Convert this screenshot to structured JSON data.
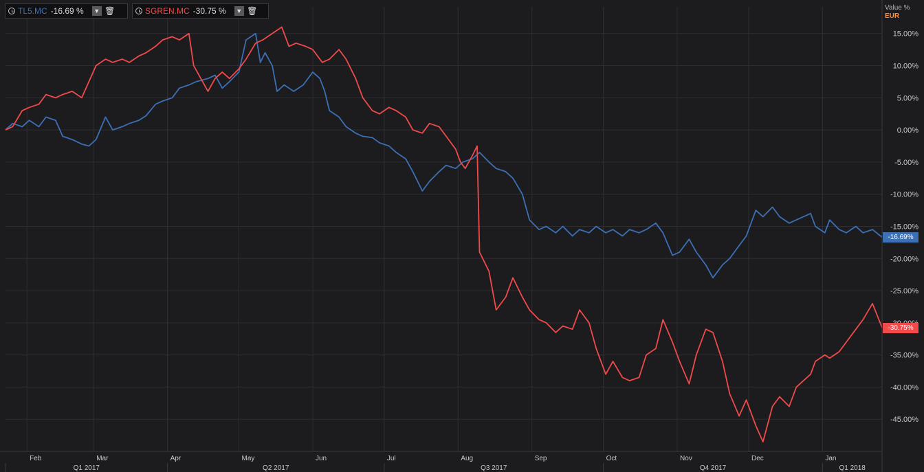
{
  "legend": [
    {
      "symbol": "TL5.MC",
      "change": "-16.69 %",
      "color": "#3d6fb4",
      "dropdown_icon": "chevron-down-icon",
      "delete_icon": "trash-icon"
    },
    {
      "symbol": "SGREN.MC",
      "change": "-30.75 %",
      "color": "#f04a4a",
      "dropdown_icon": "chevron-down-icon",
      "delete_icon": "trash-icon"
    }
  ],
  "axis_header": {
    "line1": "Value %",
    "line2": "EUR"
  },
  "last_value_labels": [
    {
      "text": "-16.69%",
      "value": -16.69,
      "color": "#3d6fb4"
    },
    {
      "text": "-30.75%",
      "value": -30.75,
      "color": "#f04a4a"
    }
  ],
  "chart_data": {
    "type": "line",
    "title": "",
    "xlabel": "",
    "ylabel": "Value %",
    "ylim": [
      -50,
      17
    ],
    "x_range": [
      "2017-01-23",
      "2018-01-26"
    ],
    "y_ticks": [
      15,
      10,
      5,
      0,
      -5,
      -10,
      -15,
      -20,
      -25,
      -30,
      -35,
      -40,
      -45
    ],
    "y_tick_labels": [
      "15.00%",
      "10.00%",
      "5.00%",
      "0.00%",
      "-5.00%",
      "-10.00%",
      "-15.00%",
      "-20.00%",
      "-25.00%",
      "-30.00%",
      "-35.00%",
      "-40.00%",
      "-45.00%"
    ],
    "month_ticks": [
      {
        "date": "2017-02-01",
        "label": "Feb"
      },
      {
        "date": "2017-03-01",
        "label": "Mar"
      },
      {
        "date": "2017-04-01",
        "label": "Apr"
      },
      {
        "date": "2017-05-01",
        "label": "May"
      },
      {
        "date": "2017-06-01",
        "label": "Jun"
      },
      {
        "date": "2017-07-01",
        "label": "Jul"
      },
      {
        "date": "2017-08-01",
        "label": "Aug"
      },
      {
        "date": "2017-09-01",
        "label": "Sep"
      },
      {
        "date": "2017-10-01",
        "label": "Oct"
      },
      {
        "date": "2017-11-01",
        "label": "Nov"
      },
      {
        "date": "2017-12-01",
        "label": "Dec"
      },
      {
        "date": "2018-01-01",
        "label": "Jan"
      }
    ],
    "quarter_labels": [
      {
        "label": "Q1 2017",
        "start": "2017-01-23",
        "end": "2017-04-01"
      },
      {
        "label": "Q2 2017",
        "start": "2017-04-01",
        "end": "2017-07-01"
      },
      {
        "label": "Q3 2017",
        "start": "2017-07-01",
        "end": "2017-10-01"
      },
      {
        "label": "Q4 2017",
        "start": "2017-10-01",
        "end": "2018-01-01"
      },
      {
        "label": "Q1 2018",
        "start": "2018-01-01",
        "end": "2018-01-26"
      }
    ],
    "grid": true,
    "series": [
      {
        "name": "TL5.MC",
        "color": "#3d6fb4",
        "points": [
          [
            "2017-01-23",
            0
          ],
          [
            "2017-01-26",
            1
          ],
          [
            "2017-01-30",
            0.5
          ],
          [
            "2017-02-02",
            1.5
          ],
          [
            "2017-02-06",
            0.5
          ],
          [
            "2017-02-09",
            2
          ],
          [
            "2017-02-13",
            1.5
          ],
          [
            "2017-02-16",
            -1
          ],
          [
            "2017-02-20",
            -1.5
          ],
          [
            "2017-02-24",
            -2.2
          ],
          [
            "2017-02-27",
            -2.5
          ],
          [
            "2017-03-02",
            -1.5
          ],
          [
            "2017-03-06",
            2
          ],
          [
            "2017-03-09",
            0
          ],
          [
            "2017-03-13",
            0.5
          ],
          [
            "2017-03-16",
            1
          ],
          [
            "2017-03-20",
            1.5
          ],
          [
            "2017-03-23",
            2.2
          ],
          [
            "2017-03-27",
            4
          ],
          [
            "2017-03-30",
            4.5
          ],
          [
            "2017-04-03",
            5
          ],
          [
            "2017-04-06",
            6.5
          ],
          [
            "2017-04-10",
            7
          ],
          [
            "2017-04-13",
            7.5
          ],
          [
            "2017-04-18",
            8
          ],
          [
            "2017-04-21",
            8.5
          ],
          [
            "2017-04-24",
            6.5
          ],
          [
            "2017-04-27",
            7.5
          ],
          [
            "2017-05-01",
            9
          ],
          [
            "2017-05-04",
            14
          ],
          [
            "2017-05-08",
            15
          ],
          [
            "2017-05-10",
            10.5
          ],
          [
            "2017-05-12",
            12
          ],
          [
            "2017-05-15",
            10
          ],
          [
            "2017-05-17",
            6
          ],
          [
            "2017-05-20",
            7
          ],
          [
            "2017-05-24",
            6
          ],
          [
            "2017-05-28",
            7
          ],
          [
            "2017-06-01",
            9
          ],
          [
            "2017-06-04",
            8
          ],
          [
            "2017-06-06",
            6
          ],
          [
            "2017-06-08",
            3
          ],
          [
            "2017-06-12",
            2
          ],
          [
            "2017-06-15",
            0.5
          ],
          [
            "2017-06-19",
            -0.5
          ],
          [
            "2017-06-22",
            -1
          ],
          [
            "2017-06-26",
            -1.2
          ],
          [
            "2017-06-29",
            -2
          ],
          [
            "2017-07-03",
            -2.5
          ],
          [
            "2017-07-06",
            -3.5
          ],
          [
            "2017-07-10",
            -4.5
          ],
          [
            "2017-07-13",
            -6.5
          ],
          [
            "2017-07-17",
            -9.5
          ],
          [
            "2017-07-20",
            -8
          ],
          [
            "2017-07-24",
            -6.5
          ],
          [
            "2017-07-27",
            -5.5
          ],
          [
            "2017-07-31",
            -6
          ],
          [
            "2017-08-03",
            -5
          ],
          [
            "2017-08-07",
            -4.5
          ],
          [
            "2017-08-10",
            -3.5
          ],
          [
            "2017-08-14",
            -5
          ],
          [
            "2017-08-17",
            -6
          ],
          [
            "2017-08-21",
            -6.5
          ],
          [
            "2017-08-24",
            -7.5
          ],
          [
            "2017-08-28",
            -10
          ],
          [
            "2017-08-31",
            -14
          ],
          [
            "2017-09-04",
            -15.5
          ],
          [
            "2017-09-07",
            -15
          ],
          [
            "2017-09-11",
            -16
          ],
          [
            "2017-09-14",
            -15
          ],
          [
            "2017-09-18",
            -16.5
          ],
          [
            "2017-09-21",
            -15.5
          ],
          [
            "2017-09-25",
            -16
          ],
          [
            "2017-09-28",
            -15
          ],
          [
            "2017-10-02",
            -16
          ],
          [
            "2017-10-05",
            -15.5
          ],
          [
            "2017-10-09",
            -16.5
          ],
          [
            "2017-10-12",
            -15.5
          ],
          [
            "2017-10-16",
            -16
          ],
          [
            "2017-10-19",
            -15.5
          ],
          [
            "2017-10-23",
            -14.5
          ],
          [
            "2017-10-26",
            -16
          ],
          [
            "2017-10-30",
            -19.5
          ],
          [
            "2017-11-02",
            -19
          ],
          [
            "2017-11-06",
            -17
          ],
          [
            "2017-11-09",
            -19
          ],
          [
            "2017-11-13",
            -21
          ],
          [
            "2017-11-16",
            -23
          ],
          [
            "2017-11-20",
            -21
          ],
          [
            "2017-11-23",
            -20
          ],
          [
            "2017-11-27",
            -18
          ],
          [
            "2017-11-30",
            -16.5
          ],
          [
            "2017-12-04",
            -12.5
          ],
          [
            "2017-12-07",
            -13.5
          ],
          [
            "2017-12-11",
            -12
          ],
          [
            "2017-12-14",
            -13.5
          ],
          [
            "2017-12-18",
            -14.5
          ],
          [
            "2017-12-21",
            -14
          ],
          [
            "2017-12-27",
            -13
          ],
          [
            "2017-12-29",
            -15
          ],
          [
            "2018-01-02",
            -16
          ],
          [
            "2018-01-04",
            -14
          ],
          [
            "2018-01-08",
            -15.5
          ],
          [
            "2018-01-11",
            -16
          ],
          [
            "2018-01-15",
            -15
          ],
          [
            "2018-01-18",
            -16
          ],
          [
            "2018-01-22",
            -15.5
          ],
          [
            "2018-01-26",
            -16.69
          ]
        ]
      },
      {
        "name": "SGREN.MC",
        "color": "#f04a4a",
        "points": [
          [
            "2017-01-23",
            0
          ],
          [
            "2017-01-26",
            0.5
          ],
          [
            "2017-01-30",
            3
          ],
          [
            "2017-02-02",
            3.5
          ],
          [
            "2017-02-06",
            4
          ],
          [
            "2017-02-09",
            5.5
          ],
          [
            "2017-02-13",
            5
          ],
          [
            "2017-02-16",
            5.5
          ],
          [
            "2017-02-20",
            6
          ],
          [
            "2017-02-24",
            5
          ],
          [
            "2017-02-27",
            7.5
          ],
          [
            "2017-03-02",
            10
          ],
          [
            "2017-03-06",
            11
          ],
          [
            "2017-03-09",
            10.5
          ],
          [
            "2017-03-13",
            11
          ],
          [
            "2017-03-16",
            10.5
          ],
          [
            "2017-03-20",
            11.5
          ],
          [
            "2017-03-23",
            12
          ],
          [
            "2017-03-27",
            13
          ],
          [
            "2017-03-30",
            14
          ],
          [
            "2017-04-03",
            14.5
          ],
          [
            "2017-04-06",
            14
          ],
          [
            "2017-04-10",
            15
          ],
          [
            "2017-04-12",
            10
          ],
          [
            "2017-04-18",
            6
          ],
          [
            "2017-04-21",
            8
          ],
          [
            "2017-04-24",
            9
          ],
          [
            "2017-04-27",
            8
          ],
          [
            "2017-05-01",
            9.5
          ],
          [
            "2017-05-04",
            11
          ],
          [
            "2017-05-08",
            13.5
          ],
          [
            "2017-05-11",
            14
          ],
          [
            "2017-05-15",
            15
          ],
          [
            "2017-05-19",
            16
          ],
          [
            "2017-05-22",
            13
          ],
          [
            "2017-05-25",
            13.5
          ],
          [
            "2017-05-29",
            13
          ],
          [
            "2017-06-01",
            12.5
          ],
          [
            "2017-06-05",
            10.5
          ],
          [
            "2017-06-08",
            11
          ],
          [
            "2017-06-12",
            12.5
          ],
          [
            "2017-06-15",
            11
          ],
          [
            "2017-06-19",
            8
          ],
          [
            "2017-06-22",
            5
          ],
          [
            "2017-06-26",
            3
          ],
          [
            "2017-06-29",
            2.5
          ],
          [
            "2017-07-03",
            3.5
          ],
          [
            "2017-07-06",
            3
          ],
          [
            "2017-07-10",
            2
          ],
          [
            "2017-07-13",
            0
          ],
          [
            "2017-07-17",
            -0.5
          ],
          [
            "2017-07-20",
            1
          ],
          [
            "2017-07-24",
            0.5
          ],
          [
            "2017-07-27",
            -1
          ],
          [
            "2017-07-31",
            -3
          ],
          [
            "2017-08-02",
            -5
          ],
          [
            "2017-08-04",
            -6
          ],
          [
            "2017-08-07",
            -4
          ],
          [
            "2017-08-09",
            -2.5
          ],
          [
            "2017-08-10",
            -19
          ],
          [
            "2017-08-14",
            -22
          ],
          [
            "2017-08-17",
            -28
          ],
          [
            "2017-08-21",
            -26
          ],
          [
            "2017-08-24",
            -23
          ],
          [
            "2017-08-28",
            -26
          ],
          [
            "2017-08-31",
            -28
          ],
          [
            "2017-09-04",
            -29.5
          ],
          [
            "2017-09-07",
            -30
          ],
          [
            "2017-09-11",
            -31.5
          ],
          [
            "2017-09-14",
            -30.5
          ],
          [
            "2017-09-18",
            -31
          ],
          [
            "2017-09-21",
            -28
          ],
          [
            "2017-09-25",
            -30
          ],
          [
            "2017-09-28",
            -34
          ],
          [
            "2017-10-02",
            -38
          ],
          [
            "2017-10-05",
            -36
          ],
          [
            "2017-10-09",
            -38.5
          ],
          [
            "2017-10-12",
            -39
          ],
          [
            "2017-10-16",
            -38.5
          ],
          [
            "2017-10-19",
            -35
          ],
          [
            "2017-10-23",
            -34
          ],
          [
            "2017-10-26",
            -29.5
          ],
          [
            "2017-10-30",
            -33
          ],
          [
            "2017-11-02",
            -36
          ],
          [
            "2017-11-06",
            -39.5
          ],
          [
            "2017-11-09",
            -35
          ],
          [
            "2017-11-13",
            -31
          ],
          [
            "2017-11-16",
            -31.5
          ],
          [
            "2017-11-20",
            -36
          ],
          [
            "2017-11-23",
            -41
          ],
          [
            "2017-11-27",
            -44.5
          ],
          [
            "2017-11-30",
            -42
          ],
          [
            "2017-12-04",
            -46
          ],
          [
            "2017-12-07",
            -48.5
          ],
          [
            "2017-12-11",
            -43
          ],
          [
            "2017-12-14",
            -41.5
          ],
          [
            "2017-12-18",
            -43
          ],
          [
            "2017-12-21",
            -40
          ],
          [
            "2017-12-27",
            -38
          ],
          [
            "2017-12-29",
            -36
          ],
          [
            "2018-01-02",
            -35
          ],
          [
            "2018-01-04",
            -35.5
          ],
          [
            "2018-01-08",
            -34.5
          ],
          [
            "2018-01-11",
            -33
          ],
          [
            "2018-01-15",
            -31
          ],
          [
            "2018-01-18",
            -29.5
          ],
          [
            "2018-01-22",
            -27
          ],
          [
            "2018-01-26",
            -30.75
          ]
        ]
      }
    ]
  }
}
